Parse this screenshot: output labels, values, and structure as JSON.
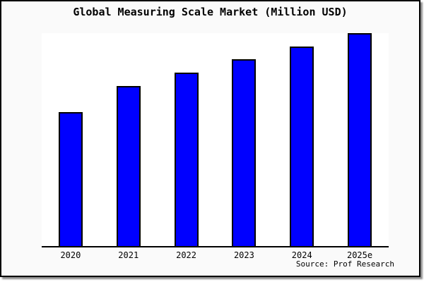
{
  "title": "Global Measuring Scale Market (Million USD)",
  "source": "Source: Prof Research",
  "colors": {
    "bar_fill": "#0000FF",
    "bar_outline": "#000000",
    "card_background": "#FAFAFA",
    "plot_background": "#FFFFFF",
    "axis_line": "#000000",
    "text": "#000000",
    "card_border": "#000000"
  },
  "chart_data": {
    "type": "bar",
    "title": "Global Measuring Scale Market (Million USD)",
    "categories": [
      "2020",
      "2021",
      "2022",
      "2023",
      "2024",
      "2025e"
    ],
    "values": [
      188,
      225,
      244,
      263,
      281,
      300
    ],
    "values_note": "y-axis is unlabeled in the image; values are relative bar heights in pixels (plot inner height 302 px)",
    "values_relative_pct_of_max": [
      62.7,
      75.0,
      81.3,
      87.7,
      93.7,
      100
    ],
    "xlabel": "",
    "ylabel": "",
    "grid": false,
    "legend": false,
    "y_axis_visible": false,
    "x_axis_visible": true,
    "source": "Source: Prof Research"
  }
}
